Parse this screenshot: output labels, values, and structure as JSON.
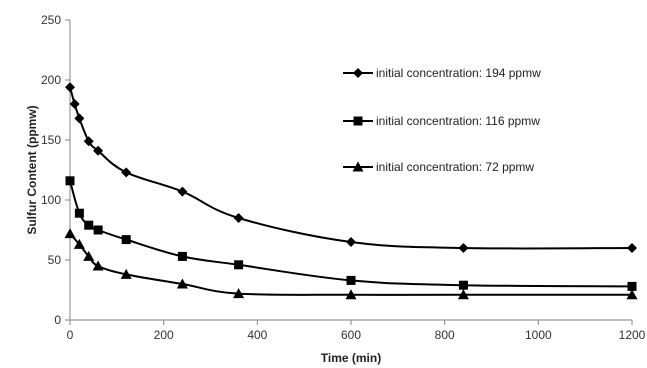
{
  "chart_data": {
    "type": "line",
    "title": "",
    "xlabel": "Time (min)",
    "ylabel": "Sulfur Content (ppmw)",
    "xlim": [
      0,
      1200
    ],
    "ylim": [
      0,
      250
    ],
    "xticks": [
      0,
      200,
      400,
      600,
      800,
      1000,
      1200
    ],
    "yticks": [
      0,
      50,
      100,
      150,
      200,
      250
    ],
    "grid": false,
    "legend_position": "top-right",
    "line_color": "#000000",
    "series": [
      {
        "name": "initial concentration: 194 ppmw",
        "marker": "diamond",
        "x": [
          0,
          10,
          20,
          40,
          60,
          120,
          240,
          360,
          600,
          840,
          1200
        ],
        "y": [
          194,
          180,
          168,
          149,
          141,
          123,
          107,
          85,
          65,
          60,
          60
        ]
      },
      {
        "name": "initial concentration: 116 ppmw",
        "marker": "square",
        "x": [
          0,
          20,
          40,
          60,
          120,
          240,
          360,
          600,
          840,
          1200
        ],
        "y": [
          116,
          89,
          79,
          75,
          67,
          53,
          46,
          33,
          29,
          28
        ]
      },
      {
        "name": "initial concentration: 72 ppmw",
        "marker": "triangle",
        "x": [
          0,
          20,
          40,
          60,
          120,
          240,
          360,
          600,
          840,
          1200
        ],
        "y": [
          72,
          63,
          53,
          45,
          38,
          30,
          22,
          21,
          21,
          21
        ]
      }
    ]
  }
}
